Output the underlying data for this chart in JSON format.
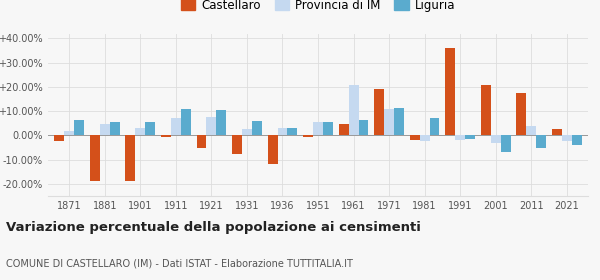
{
  "years": [
    1871,
    1881,
    1901,
    1911,
    1921,
    1931,
    1936,
    1951,
    1961,
    1971,
    1981,
    1991,
    2001,
    2011,
    2021
  ],
  "castellaro": [
    -2.5,
    -19.0,
    -19.0,
    -0.5,
    -5.0,
    -7.5,
    -12.0,
    -0.5,
    4.5,
    19.0,
    -2.0,
    36.0,
    21.0,
    17.5,
    2.5
  ],
  "provincia_im": [
    2.0,
    4.5,
    3.0,
    7.0,
    7.5,
    2.5,
    3.0,
    5.5,
    21.0,
    11.0,
    -2.5,
    -2.0,
    -3.0,
    4.0,
    -2.5
  ],
  "liguria": [
    6.5,
    5.5,
    5.5,
    11.0,
    10.5,
    6.0,
    3.0,
    5.5,
    6.5,
    11.5,
    7.0,
    -1.5,
    -7.0,
    -5.0,
    -4.0
  ],
  "color_castellaro": "#d4501a",
  "color_provincia": "#c5d9f0",
  "color_liguria": "#5aabce",
  "title": "Variazione percentuale della popolazione ai censimenti",
  "subtitle": "COMUNE DI CASTELLARO (IM) - Dati ISTAT - Elaborazione TUTTITALIA.IT",
  "ylim": [
    -25,
    42
  ],
  "yticks": [
    -20,
    -10,
    0,
    10,
    20,
    30,
    40
  ],
  "ytick_labels": [
    "-20.00%",
    "-10.00%",
    "0.00%",
    "+10.00%",
    "+20.00%",
    "+30.00%",
    "+40.00%"
  ],
  "bg_color": "#f7f7f7",
  "grid_color": "#dddddd"
}
